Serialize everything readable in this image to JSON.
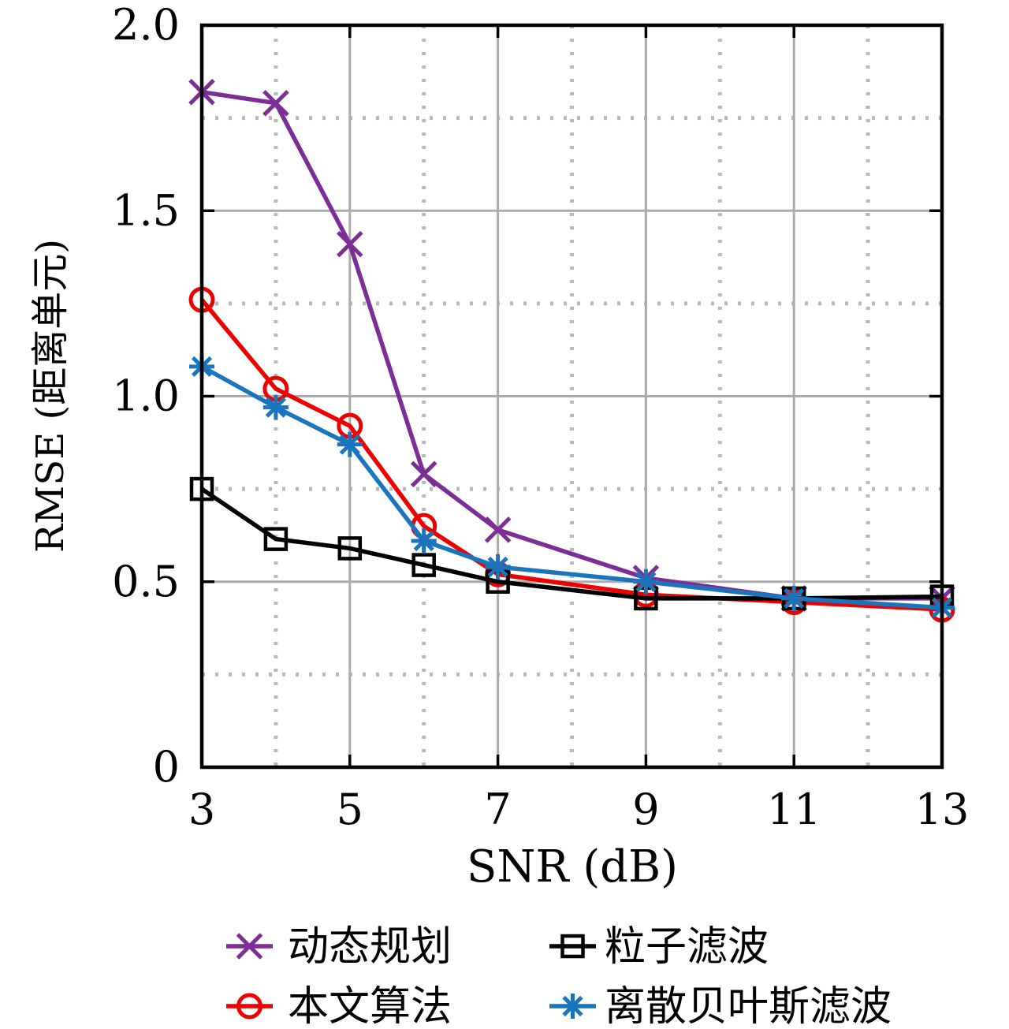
{
  "chart_data": {
    "type": "line",
    "title": "",
    "xlabel": "SNR (dB)",
    "ylabel": "RMSE (距离单元)",
    "xlim": [
      3,
      13
    ],
    "ylim": [
      0,
      2.0
    ],
    "x_ticks": [
      3,
      5,
      7,
      9,
      11,
      13
    ],
    "x_tick_labels": [
      "3",
      "5",
      "7",
      "9",
      "11",
      "13"
    ],
    "y_ticks": [
      0,
      0.5,
      1.0,
      1.5,
      2.0
    ],
    "y_tick_labels": [
      "0",
      "0.5",
      "1.0",
      "1.5",
      "2.0"
    ],
    "x_minor_grid": [
      4,
      6,
      8,
      10,
      12
    ],
    "y_minor_grid": [
      0.25,
      0.75,
      1.25,
      1.75
    ],
    "grid": {
      "major_style": "solid",
      "major_color": "#ABABAB",
      "minor_style": "dotted",
      "minor_color": "#B9B9B9"
    },
    "x": [
      3,
      4,
      5,
      6,
      7,
      9,
      11,
      13
    ],
    "series": [
      {
        "id": "dynamic-programming",
        "name": "动态规划",
        "color": "#7D2E96",
        "marker": "x",
        "values": [
          1.82,
          1.79,
          1.41,
          0.79,
          0.64,
          0.51,
          0.455,
          0.455
        ]
      },
      {
        "id": "proposed-algorithm",
        "name": "本文算法",
        "color": "#EE0000",
        "marker": "circle",
        "values": [
          1.26,
          1.02,
          0.92,
          0.65,
          0.52,
          0.465,
          0.445,
          0.425
        ]
      },
      {
        "id": "particle-filter",
        "name": "粒子滤波",
        "color": "#000000",
        "marker": "square",
        "values": [
          0.75,
          0.615,
          0.59,
          0.545,
          0.5,
          0.455,
          0.455,
          0.46
        ]
      },
      {
        "id": "discrete-bayes-filter",
        "name": "离散贝叶斯滤波",
        "color": "#1B75BC",
        "marker": "asterisk",
        "values": [
          1.08,
          0.97,
          0.87,
          0.61,
          0.54,
          0.5,
          0.455,
          0.43
        ]
      }
    ],
    "legend": {
      "position": "below-chart",
      "columns": 2,
      "row_major_series_order": [
        0,
        2,
        1,
        3
      ]
    }
  }
}
